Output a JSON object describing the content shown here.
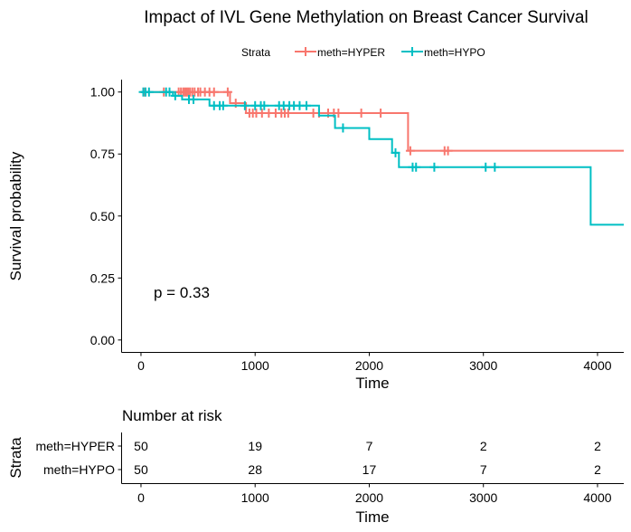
{
  "chart_data": [
    {
      "type": "line",
      "subtype": "kaplan-meier-step",
      "title": "Impact of IVL Gene Methylation on Breast Cancer Survival",
      "xlabel": "Time",
      "ylabel": "Survival probability",
      "xlim": [
        -170,
        4230
      ],
      "ylim": [
        -0.05,
        1.05
      ],
      "x_ticks": [
        0,
        1000,
        2000,
        3000,
        4000
      ],
      "y_ticks": [
        0.0,
        0.25,
        0.5,
        0.75,
        1.0
      ],
      "x_tick_labels": [
        "0",
        "1000",
        "2000",
        "3000",
        "4000"
      ],
      "y_tick_labels": [
        "0.00",
        "0.25",
        "0.50",
        "0.75",
        "1.00"
      ],
      "legend": {
        "title": "Strata",
        "position": "top"
      },
      "annotation": "p = 0.33",
      "grid": false,
      "series": [
        {
          "name": "meth=HYPER",
          "color": "#F8766D",
          "steps": [
            [
              0,
              1.0
            ],
            [
              780,
              1.0
            ],
            [
              780,
              0.955
            ],
            [
              920,
              0.955
            ],
            [
              920,
              0.915
            ],
            [
              2340,
              0.915
            ],
            [
              2340,
              0.763
            ],
            [
              4230,
              0.763
            ]
          ],
          "censor_times": [
            30,
            200,
            330,
            350,
            370,
            385,
            400,
            415,
            430,
            450,
            470,
            500,
            520,
            560,
            600,
            640,
            760,
            830,
            950,
            980,
            1010,
            1060,
            1120,
            1180,
            1230,
            1260,
            1290,
            1510,
            1560,
            1640,
            1690,
            1730,
            1930,
            2100,
            2360,
            2660,
            2690
          ]
        },
        {
          "name": "meth=HYPO",
          "color": "#00BFC4",
          "steps": [
            [
              0,
              1.0
            ],
            [
              280,
              1.0
            ],
            [
              280,
              0.985
            ],
            [
              360,
              0.985
            ],
            [
              360,
              0.97
            ],
            [
              600,
              0.97
            ],
            [
              600,
              0.945
            ],
            [
              1560,
              0.945
            ],
            [
              1560,
              0.905
            ],
            [
              1700,
              0.905
            ],
            [
              1700,
              0.855
            ],
            [
              2000,
              0.855
            ],
            [
              2000,
              0.81
            ],
            [
              2200,
              0.81
            ],
            [
              2200,
              0.755
            ],
            [
              2260,
              0.755
            ],
            [
              2260,
              0.697
            ],
            [
              3940,
              0.697
            ],
            [
              3940,
              0.465
            ],
            [
              4230,
              0.465
            ]
          ],
          "censor_times": [
            20,
            40,
            70,
            220,
            250,
            300,
            420,
            460,
            640,
            690,
            720,
            910,
            1000,
            1050,
            1080,
            1210,
            1250,
            1300,
            1340,
            1390,
            1450,
            1770,
            2230,
            2380,
            2410,
            2570,
            3020,
            3100
          ]
        }
      ]
    },
    {
      "type": "table",
      "title": "Number at risk",
      "xlabel": "Time",
      "ylabel": "Strata",
      "x_ticks": [
        0,
        1000,
        2000,
        3000,
        4000
      ],
      "x_tick_labels": [
        "0",
        "1000",
        "2000",
        "3000",
        "4000"
      ],
      "rows": [
        {
          "name": "meth=HYPER",
          "color": "#F8766D",
          "values": [
            50,
            19,
            7,
            2,
            2
          ]
        },
        {
          "name": "meth=HYPO",
          "color": "#00BFC4",
          "values": [
            50,
            28,
            17,
            7,
            2
          ]
        }
      ]
    }
  ]
}
